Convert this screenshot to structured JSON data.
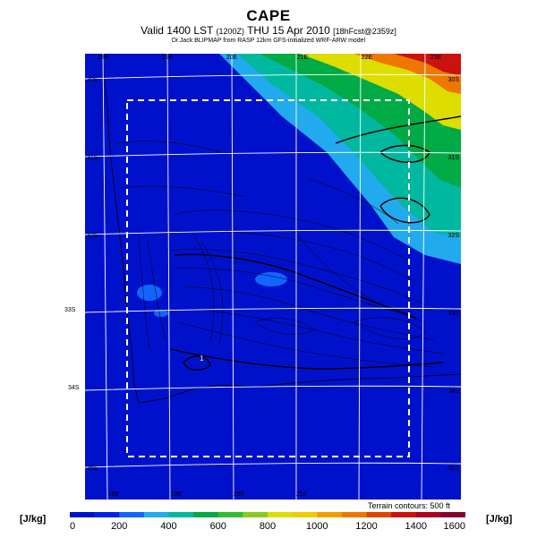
{
  "header": {
    "title": "CAPE",
    "subtitle_main": "Valid 1400 LST",
    "subtitle_z": "(1200Z)",
    "subtitle_date": "THU 15 Apr 2010",
    "subtitle_fcst": "[18hFcst@2359z]",
    "credit": "Dr.Jack BLIPMAP from RASP 12km GFS-initialized WRF-ARW model"
  },
  "map": {
    "lon_labels_top": [
      "18E",
      "19E",
      "20E",
      "21E",
      "22E",
      "23E"
    ],
    "lon_labels_bottom": [
      "18E",
      "19E",
      "20E",
      "21E"
    ],
    "lat_labels_left": [
      "30S",
      "31S",
      "32S",
      "33S",
      "34S",
      "35S"
    ],
    "lat_labels_right": [
      "30S",
      "31S",
      "32S",
      "33S",
      "34S",
      "35S"
    ],
    "point_label": "1",
    "terrain_note": "Terrain contours: 500 ft"
  },
  "colorbar": {
    "unit_left": "[J/kg]",
    "unit_right": "[J/kg]",
    "ticks": [
      "0",
      "200",
      "400",
      "600",
      "800",
      "1000",
      "1200",
      "1400",
      "1600"
    ],
    "colors": [
      "#0011cc",
      "#0022ee",
      "#1166ff",
      "#22aaee",
      "#00b8a0",
      "#00aa44",
      "#33bb33",
      "#88cc22",
      "#dddd00",
      "#eecc00",
      "#eea000",
      "#ee7700",
      "#dd4400",
      "#cc1111",
      "#aa0022",
      "#880033"
    ]
  }
}
